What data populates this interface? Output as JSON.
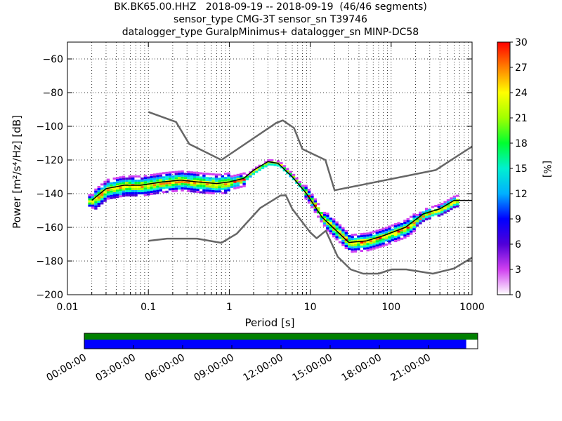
{
  "title_lines": [
    "BK.BK65.00.HHZ   2018-09-19 -- 2018-09-19  (46/46 segments)",
    "sensor_type CMG-3T sensor_sn T39746",
    "datalogger_type GuralpMinimus+ datalogger_sn MINP-DC58"
  ],
  "colors": {
    "noise_model": "#666666",
    "mean_line": "#000000",
    "coverage_top": "#008000",
    "coverage_bottom": "#0000ff"
  },
  "chart_data": {
    "type": "heatmap",
    "xlabel": "Period [s]",
    "ylabel": "Power [m²/s⁴/Hz] [dB]",
    "xscale": "log",
    "xlim": [
      0.01,
      1000
    ],
    "ylim": [
      -200,
      -50
    ],
    "xticks": [
      {
        "v": 0.01,
        "label": "0.01"
      },
      {
        "v": 0.1,
        "label": "0.1"
      },
      {
        "v": 1,
        "label": "1"
      },
      {
        "v": 10,
        "label": "10"
      },
      {
        "v": 100,
        "label": "100"
      },
      {
        "v": 1000,
        "label": "1000"
      }
    ],
    "yticks": [
      -60,
      -80,
      -100,
      -120,
      -140,
      -160,
      -180,
      -200
    ],
    "ytick_labels": [
      "−60",
      "−80",
      "−100",
      "−120",
      "−140",
      "−160",
      "−180",
      "−200"
    ],
    "colorbar": {
      "label": "[%]",
      "range": [
        0,
        30
      ],
      "ticks": [
        "0",
        "3",
        "6",
        "9",
        "12",
        "15",
        "18",
        "21",
        "24",
        "27",
        "30"
      ]
    },
    "high_noise_model": [
      [
        0.1,
        -91.5
      ],
      [
        0.22,
        -97.4
      ],
      [
        0.32,
        -110.5
      ],
      [
        0.8,
        -120
      ],
      [
        3.8,
        -98
      ],
      [
        4.6,
        -96.5
      ],
      [
        6.3,
        -101
      ],
      [
        8,
        -113.5
      ],
      [
        15.4,
        -120
      ],
      [
        20,
        -138
      ],
      [
        354.8,
        -126
      ],
      [
        1000,
        -112
      ]
    ],
    "low_noise_model": [
      [
        0.1,
        -168
      ],
      [
        0.17,
        -166.7
      ],
      [
        0.4,
        -166.7
      ],
      [
        0.8,
        -169.2
      ],
      [
        1.24,
        -163.7
      ],
      [
        2.4,
        -148.6
      ],
      [
        4.3,
        -141.1
      ],
      [
        5,
        -141
      ],
      [
        6,
        -149
      ],
      [
        10,
        -163
      ],
      [
        12,
        -166.5
      ],
      [
        15.6,
        -162
      ],
      [
        21.9,
        -177.5
      ],
      [
        31.6,
        -185
      ],
      [
        45,
        -187.5
      ],
      [
        70,
        -187.5
      ],
      [
        101,
        -185
      ],
      [
        154,
        -185
      ],
      [
        328,
        -187.5
      ],
      [
        600,
        -184.4
      ],
      [
        1000,
        -178
      ]
    ],
    "mean_psd": [
      [
        0.02,
        -144
      ],
      [
        0.03,
        -137
      ],
      [
        0.05,
        -135
      ],
      [
        0.08,
        -135
      ],
      [
        0.15,
        -133
      ],
      [
        0.25,
        -132
      ],
      [
        0.4,
        -133
      ],
      [
        0.7,
        -134
      ],
      [
        1.0,
        -133
      ],
      [
        1.5,
        -131
      ],
      [
        2,
        -126
      ],
      [
        3,
        -121
      ],
      [
        4,
        -122
      ],
      [
        6,
        -130
      ],
      [
        9,
        -140
      ],
      [
        14,
        -154
      ],
      [
        20,
        -161
      ],
      [
        30,
        -169
      ],
      [
        50,
        -168
      ],
      [
        80,
        -165
      ],
      [
        150,
        -160
      ],
      [
        250,
        -152
      ],
      [
        400,
        -149
      ],
      [
        600,
        -144
      ],
      [
        1000,
        -144
      ]
    ],
    "coverage": {
      "tick_labels": [
        "00:00:00",
        "03:00:00",
        "06:00:00",
        "09:00:00",
        "12:00:00",
        "15:00:00",
        "18:00:00",
        "21:00:00"
      ],
      "data_available_until_hours": 24,
      "psd_segments_until_hours": 23.3
    }
  }
}
